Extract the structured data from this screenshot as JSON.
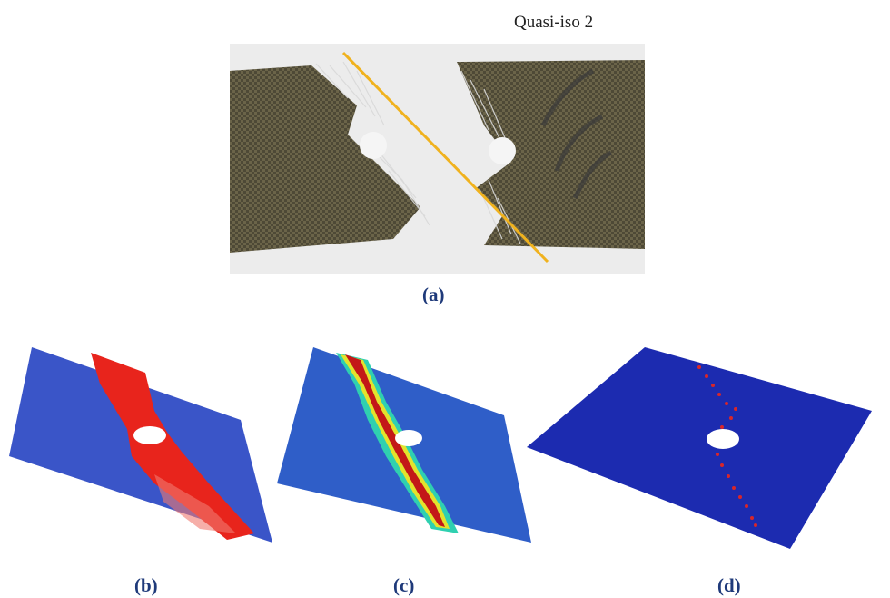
{
  "figure": {
    "title": "Quasi-iso 2",
    "captions": {
      "a": "(a)",
      "b": "(b)",
      "c": "(c)",
      "d": "(d)"
    }
  },
  "colors": {
    "plate_blue": "#3a55c8",
    "damage_red": "#e8241c",
    "fracture_line": "#f0b21e",
    "specimen_weave": "#5b5440",
    "fiber_white": "#d8d8d8"
  }
}
